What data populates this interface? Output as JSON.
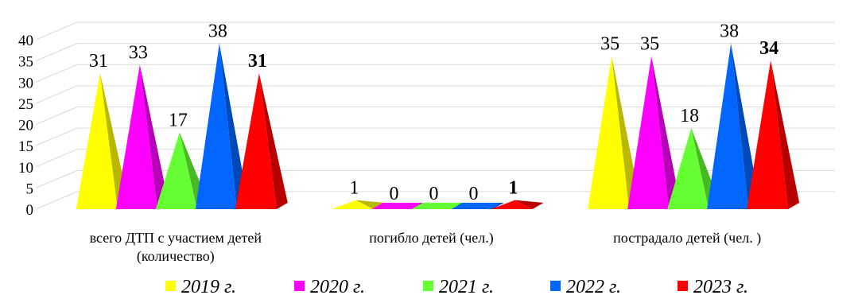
{
  "chart_data": {
    "type": "bar",
    "bar_shape": "pyramid-3d",
    "categories": [
      [
        "всего ДТП с участием детей",
        "(количество)"
      ],
      [
        "погибло детей (чел.)"
      ],
      [
        "пострадало детей (чел. )"
      ]
    ],
    "series": [
      {
        "name": "2019 г.",
        "color": "#ffff00",
        "values": [
          31,
          1,
          35
        ],
        "label_bold": false
      },
      {
        "name": "2020 г.",
        "color": "#ff00ff",
        "values": [
          33,
          0,
          35
        ],
        "label_bold": false
      },
      {
        "name": "2021 г.",
        "color": "#66ff33",
        "values": [
          17,
          0,
          18
        ],
        "label_bold": false
      },
      {
        "name": "2022 г.",
        "color": "#0066ff",
        "values": [
          38,
          0,
          38
        ],
        "label_bold": false
      },
      {
        "name": "2023 г.",
        "color": "#ff0000",
        "values": [
          31,
          1,
          34
        ],
        "label_bold": true
      }
    ],
    "ylim": [
      0,
      40
    ],
    "yticks": [
      0,
      5,
      10,
      15,
      20,
      25,
      30,
      35,
      40
    ],
    "grid": true,
    "legend_position": "bottom",
    "title": "",
    "xlabel": "",
    "ylabel": ""
  }
}
